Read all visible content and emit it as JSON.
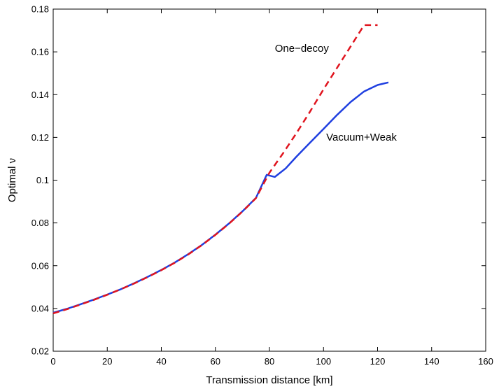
{
  "chart_data": {
    "type": "line",
    "title": "",
    "xlabel": "Transmission distance [km]",
    "ylabel": "Optimal ν",
    "xlim": [
      0,
      160
    ],
    "ylim": [
      0.02,
      0.18
    ],
    "xticks": [
      0,
      20,
      40,
      60,
      80,
      100,
      120,
      140,
      160
    ],
    "xtick_labels": [
      "0",
      "20",
      "40",
      "60",
      "80",
      "100",
      "120",
      "140",
      "160"
    ],
    "yticks": [
      0.02,
      0.04,
      0.06,
      0.08,
      0.1,
      0.12,
      0.14,
      0.16,
      0.18
    ],
    "ytick_labels": [
      "0.02",
      "0.04",
      "0.06",
      "0.08",
      "0.1",
      "0.12",
      "0.14",
      "0.16",
      "0.18"
    ],
    "grid": false,
    "legend": "none",
    "series": [
      {
        "name": "Vacuum+Weak",
        "color": "#1f3fe0",
        "style": "solid",
        "x": [
          0,
          5,
          10,
          15,
          20,
          25,
          30,
          35,
          40,
          45,
          50,
          55,
          60,
          65,
          70,
          75,
          79,
          82,
          86,
          90,
          95,
          100,
          105,
          110,
          115,
          120,
          124
        ],
        "y": [
          0.038,
          0.0398,
          0.0419,
          0.0441,
          0.0465,
          0.049,
          0.0518,
          0.0548,
          0.058,
          0.0615,
          0.0654,
          0.0697,
          0.0745,
          0.0797,
          0.0854,
          0.0917,
          0.1025,
          0.1015,
          0.1055,
          0.111,
          0.1175,
          0.124,
          0.1305,
          0.1365,
          0.1415,
          0.1445,
          0.1457
        ]
      },
      {
        "name": "One−decoy",
        "color": "#e0141e",
        "style": "dashed",
        "x": [
          0,
          5,
          10,
          15,
          20,
          25,
          30,
          35,
          40,
          45,
          50,
          55,
          60,
          65,
          70,
          75,
          80,
          85,
          90,
          95,
          100,
          105,
          110,
          115,
          120
        ],
        "y": [
          0.0377,
          0.0396,
          0.0418,
          0.044,
          0.0464,
          0.049,
          0.0517,
          0.0547,
          0.0579,
          0.0614,
          0.0653,
          0.0696,
          0.0744,
          0.0796,
          0.0853,
          0.0916,
          0.1035,
          0.1125,
          0.122,
          0.132,
          0.1425,
          0.1525,
          0.1625,
          0.1725,
          0.1725
        ]
      }
    ],
    "annotations": [
      {
        "text": "One−decoy",
        "x": 82,
        "y": 0.16
      },
      {
        "text": "Vacuum+Weak",
        "x": 101,
        "y": 0.1185
      }
    ]
  }
}
